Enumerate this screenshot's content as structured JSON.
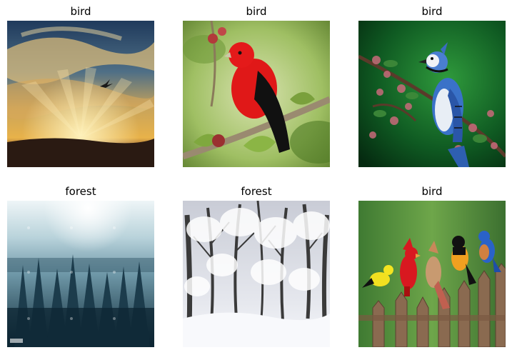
{
  "grid": {
    "panels": [
      {
        "label": "bird"
      },
      {
        "label": "bird"
      },
      {
        "label": "bird"
      },
      {
        "label": "forest"
      },
      {
        "label": "forest"
      },
      {
        "label": "bird"
      }
    ]
  }
}
